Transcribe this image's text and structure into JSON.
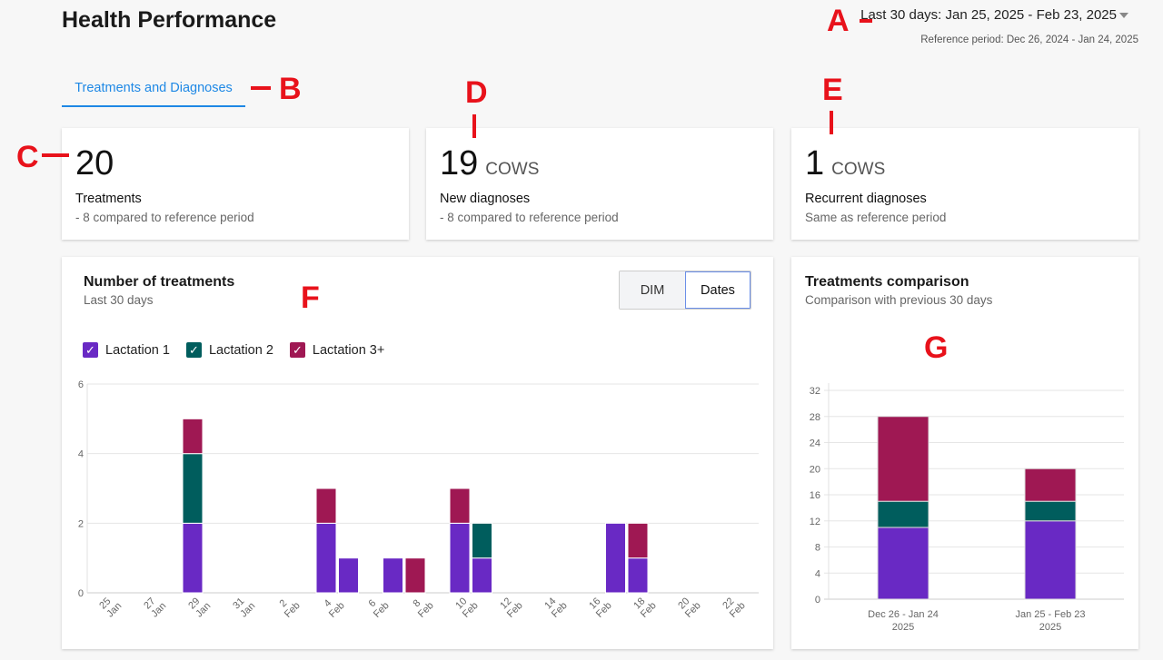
{
  "header": {
    "title": "Health Performance",
    "date_range": "Last 30 days: Jan 25, 2025 - Feb 23, 2025",
    "reference_period": "Reference period: Dec 26, 2024 - Jan 24, 2025"
  },
  "tabs": [
    {
      "label": "Treatments and Diagnoses",
      "active": true
    }
  ],
  "kpis": [
    {
      "value": "20",
      "unit": "",
      "label": "Treatments",
      "comparison": "- 8 compared to reference period"
    },
    {
      "value": "19",
      "unit": "COWS",
      "label": "New diagnoses",
      "comparison": "- 8 compared to reference period"
    },
    {
      "value": "1",
      "unit": "COWS",
      "label": "Recurrent diagnoses",
      "comparison": "Same as reference period"
    }
  ],
  "annotations": [
    "A",
    "B",
    "C",
    "D",
    "E",
    "F",
    "G"
  ],
  "colors": {
    "lactation1": "#6929c4",
    "lactation2": "#005d5d",
    "lactation3": "#9f1853",
    "accent": "#1e88e5",
    "annotation": "#e8121b"
  },
  "treatments_panel": {
    "title": "Number of treatments",
    "subtitle": "Last 30 days",
    "toggle": {
      "options": [
        "DIM",
        "Dates"
      ],
      "selected": "Dates"
    },
    "legend": [
      {
        "label": "Lactation 1",
        "checked": true,
        "color": "#6929c4"
      },
      {
        "label": "Lactation 2",
        "checked": true,
        "color": "#005d5d"
      },
      {
        "label": "Lactation 3+",
        "checked": true,
        "color": "#9f1853"
      }
    ]
  },
  "comparison_panel": {
    "title": "Treatments comparison",
    "subtitle": "Comparison with previous 30 days"
  },
  "chart_data": [
    {
      "type": "bar",
      "stacked": true,
      "grid": true,
      "ylim": [
        0,
        6
      ],
      "yticks": [
        0,
        2,
        4,
        6
      ],
      "x_ticks": [
        [
          "25",
          "Jan"
        ],
        [
          "27",
          "Jan"
        ],
        [
          "29",
          "Jan"
        ],
        [
          "31",
          "Jan"
        ],
        [
          "2",
          "Feb"
        ],
        [
          "4",
          "Feb"
        ],
        [
          "6",
          "Feb"
        ],
        [
          "8",
          "Feb"
        ],
        [
          "10",
          "Feb"
        ],
        [
          "12",
          "Feb"
        ],
        [
          "14",
          "Feb"
        ],
        [
          "16",
          "Feb"
        ],
        [
          "18",
          "Feb"
        ],
        [
          "20",
          "Feb"
        ],
        [
          "22",
          "Feb"
        ]
      ],
      "categories": [
        "Jan 25",
        "Jan 26",
        "Jan 27",
        "Jan 28",
        "Jan 29",
        "Jan 30",
        "Jan 31",
        "Feb 1",
        "Feb 2",
        "Feb 3",
        "Feb 4",
        "Feb 5",
        "Feb 6",
        "Feb 7",
        "Feb 8",
        "Feb 9",
        "Feb 10",
        "Feb 11",
        "Feb 12",
        "Feb 13",
        "Feb 14",
        "Feb 15",
        "Feb 16",
        "Feb 17",
        "Feb 18",
        "Feb 19",
        "Feb 20",
        "Feb 21",
        "Feb 22",
        "Feb 23"
      ],
      "series": [
        {
          "name": "Lactation 1",
          "values": [
            0,
            0,
            0,
            0,
            2,
            0,
            0,
            0,
            0,
            0,
            2,
            1,
            0,
            1,
            0,
            0,
            2,
            1,
            0,
            0,
            0,
            0,
            0,
            2,
            1,
            0,
            0,
            0,
            0,
            0
          ]
        },
        {
          "name": "Lactation 2",
          "values": [
            0,
            0,
            0,
            0,
            2,
            0,
            0,
            0,
            0,
            0,
            0,
            0,
            0,
            0,
            0,
            0,
            0,
            1,
            0,
            0,
            0,
            0,
            0,
            0,
            0,
            0,
            0,
            0,
            0,
            0
          ]
        },
        {
          "name": "Lactation 3+",
          "values": [
            0,
            0,
            0,
            0,
            1,
            0,
            0,
            0,
            0,
            0,
            1,
            0,
            0,
            0,
            1,
            0,
            1,
            0,
            0,
            0,
            0,
            0,
            0,
            0,
            1,
            0,
            0,
            0,
            0,
            0
          ]
        }
      ]
    },
    {
      "type": "bar",
      "stacked": true,
      "grid": true,
      "ylim": [
        0,
        32
      ],
      "yticks": [
        0,
        4,
        8,
        12,
        16,
        20,
        24,
        28,
        32
      ],
      "categories": [
        [
          "Dec 26 - Jan 24",
          "2025"
        ],
        [
          "Jan 25 - Feb 23",
          "2025"
        ]
      ],
      "series": [
        {
          "name": "Lactation 1",
          "values": [
            11,
            12
          ]
        },
        {
          "name": "Lactation 2",
          "values": [
            4,
            3
          ]
        },
        {
          "name": "Lactation 3+",
          "values": [
            13,
            5
          ]
        }
      ]
    }
  ]
}
